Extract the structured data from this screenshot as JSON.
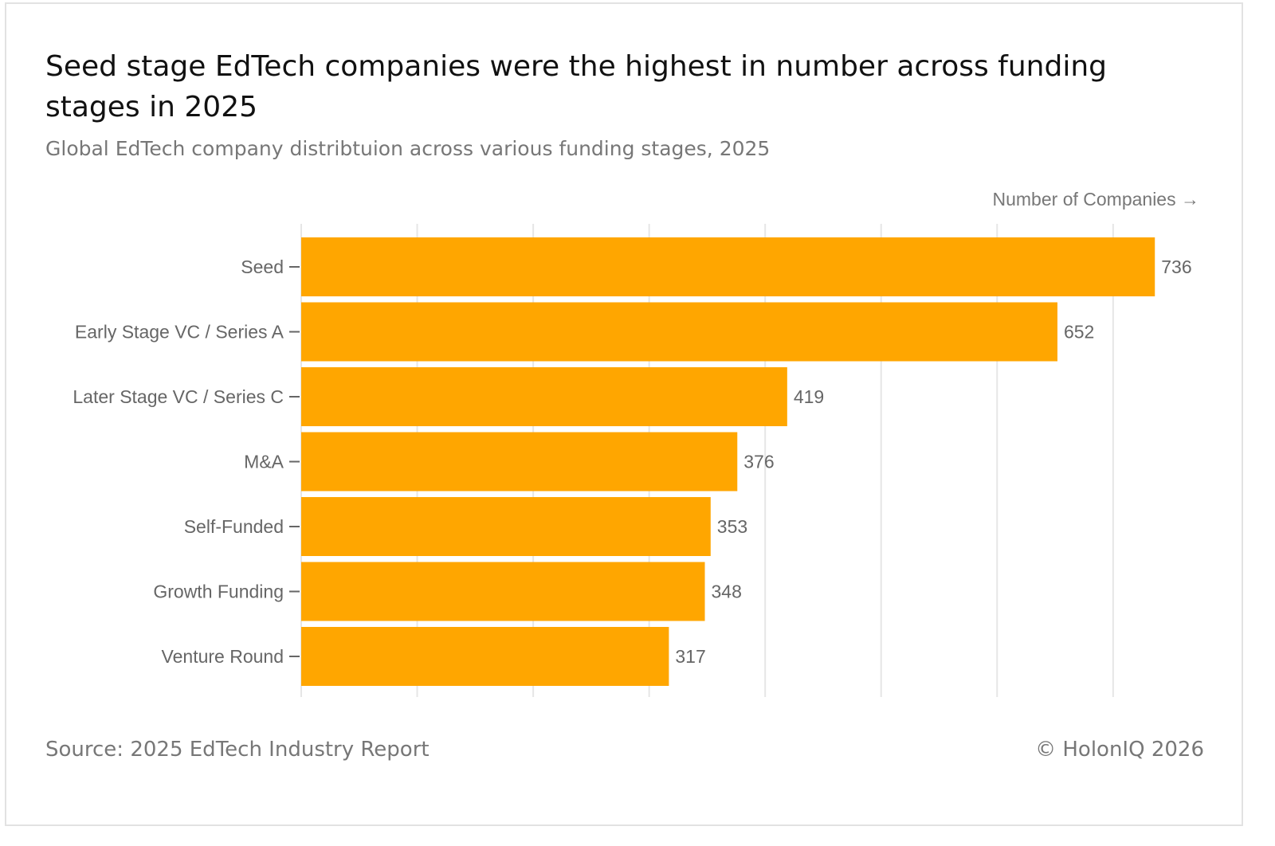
{
  "title": "Seed stage EdTech companies were the highest in number across funding stages in 2025",
  "subtitle": "Global EdTech company distribtuion across various funding stages, 2025",
  "source": "Source: 2025 EdTech Industry Report",
  "copyright": "© HolonIQ 2026",
  "chart_data": {
    "type": "bar",
    "orientation": "horizontal",
    "title": "Seed stage EdTech companies were the highest in number across funding stages in 2025",
    "xlabel": "Number of Companies →",
    "ylabel": "",
    "categories": [
      "Seed",
      "Early Stage VC / Series A",
      "Later Stage VC / Series C",
      "M&A",
      "Self-Funded",
      "Growth Funding",
      "Venture Round"
    ],
    "values": [
      736,
      652,
      419,
      376,
      353,
      348,
      317
    ],
    "xlim": [
      0,
      775
    ],
    "gridlines": [
      0,
      100,
      200,
      300,
      400,
      500,
      600,
      700
    ],
    "grid": true,
    "bar_color": "#FFA600"
  }
}
